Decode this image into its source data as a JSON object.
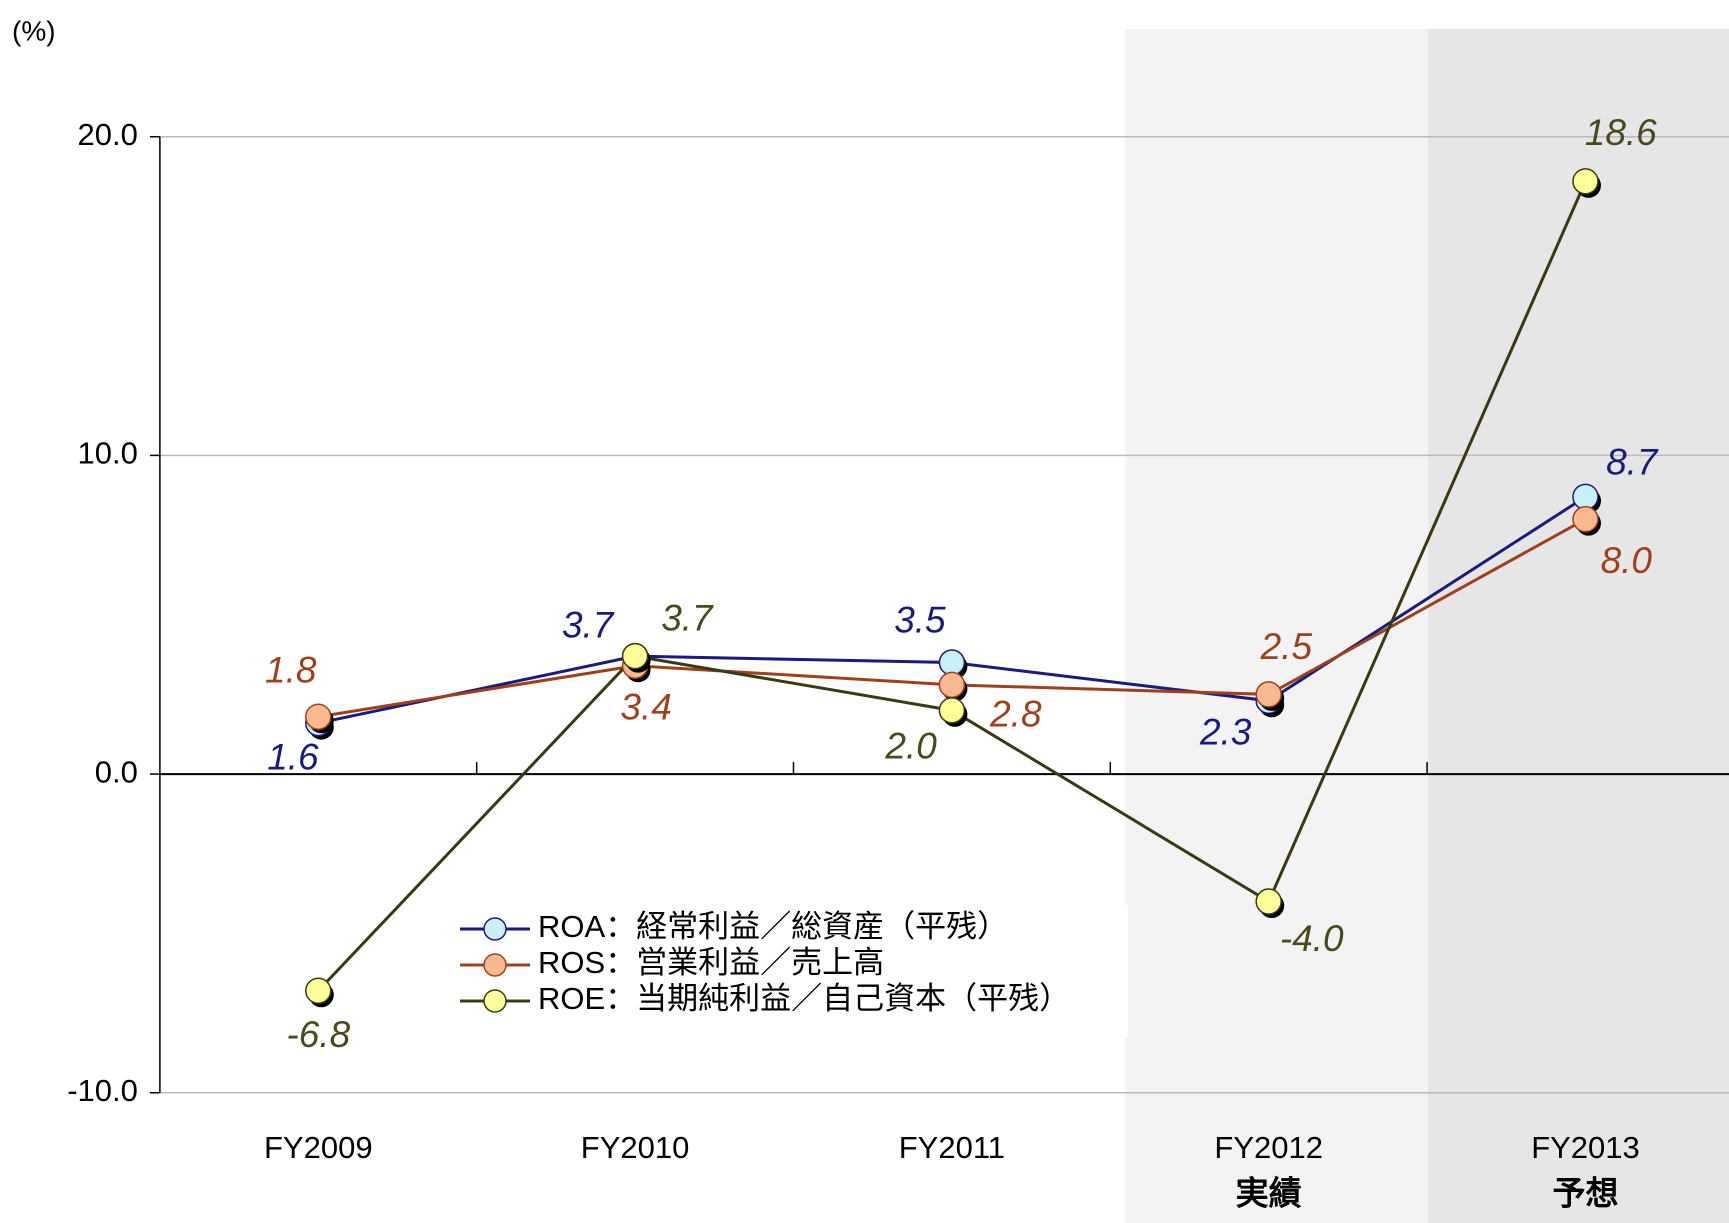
{
  "chart_data": {
    "type": "line",
    "y_unit_label": "(%)",
    "categories": [
      "FY2009",
      "FY2010",
      "FY2011",
      "FY2012",
      "FY2013"
    ],
    "category_notes": [
      null,
      null,
      null,
      "実績",
      "予想"
    ],
    "ylim": [
      -10,
      20
    ],
    "yticks": [
      {
        "value": -10,
        "label": "-10.0"
      },
      {
        "value": 0,
        "label": "0.0"
      },
      {
        "value": 10,
        "label": "10.0"
      },
      {
        "value": 20,
        "label": "20.0"
      }
    ],
    "grid": true,
    "legend": "lower-center",
    "series": [
      {
        "name": "ROA：経常利益／総資産（平残）",
        "color": "#1a1a80",
        "marker_color": "#c8f0f8",
        "label_color": "#1a1a80",
        "values": [
          1.6,
          3.7,
          3.5,
          2.3,
          8.7
        ],
        "value_labels": [
          "1.6",
          "3.7",
          "3.5",
          "2.3",
          "8.7"
        ]
      },
      {
        "name": "ROS：営業利益／売上高",
        "color": "#a0401a",
        "marker_color": "#f8b890",
        "label_color": "#a0401a",
        "values": [
          1.8,
          3.4,
          2.8,
          2.5,
          8.0
        ],
        "value_labels": [
          "1.8",
          "3.4",
          "2.8",
          "2.5",
          "8.0"
        ]
      },
      {
        "name": "ROE：当期純利益／自己資本（平残）",
        "color": "#3a3a10",
        "marker_color": "#ffff99",
        "label_color": "#4a4a1a",
        "values": [
          -6.8,
          3.7,
          2.0,
          -4.0,
          18.6
        ],
        "value_labels": [
          "-6.8",
          "3.7",
          "2.0",
          "-4.0",
          "18.6"
        ]
      }
    ]
  }
}
